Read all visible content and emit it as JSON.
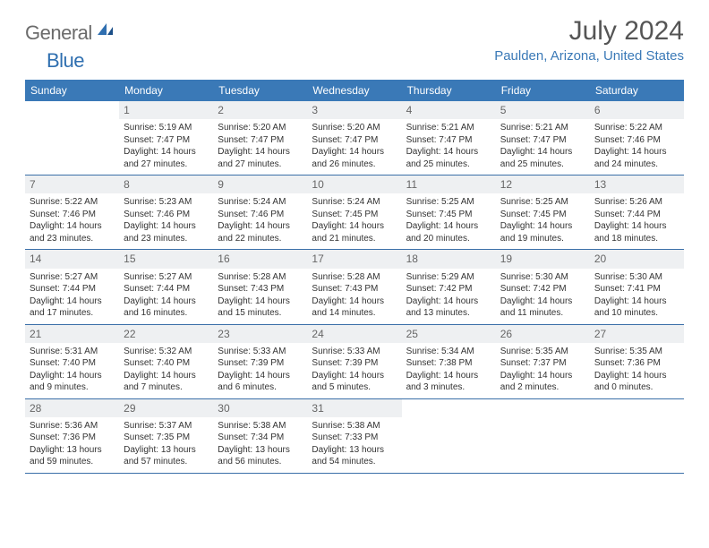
{
  "logo": {
    "general": "General",
    "blue": "Blue"
  },
  "title": "July 2024",
  "location": "Paulden, Arizona, United States",
  "colors": {
    "header_bg": "#3a79b7",
    "header_text": "#ffffff",
    "daynum_bg": "#eef0f2",
    "daynum_text": "#666666",
    "border": "#3a6fa8",
    "location_text": "#3a79b7"
  },
  "day_headers": [
    "Sunday",
    "Monday",
    "Tuesday",
    "Wednesday",
    "Thursday",
    "Friday",
    "Saturday"
  ],
  "weeks": [
    [
      null,
      {
        "n": "1",
        "sr": "Sunrise: 5:19 AM",
        "ss": "Sunset: 7:47 PM",
        "d1": "Daylight: 14 hours",
        "d2": "and 27 minutes."
      },
      {
        "n": "2",
        "sr": "Sunrise: 5:20 AM",
        "ss": "Sunset: 7:47 PM",
        "d1": "Daylight: 14 hours",
        "d2": "and 27 minutes."
      },
      {
        "n": "3",
        "sr": "Sunrise: 5:20 AM",
        "ss": "Sunset: 7:47 PM",
        "d1": "Daylight: 14 hours",
        "d2": "and 26 minutes."
      },
      {
        "n": "4",
        "sr": "Sunrise: 5:21 AM",
        "ss": "Sunset: 7:47 PM",
        "d1": "Daylight: 14 hours",
        "d2": "and 25 minutes."
      },
      {
        "n": "5",
        "sr": "Sunrise: 5:21 AM",
        "ss": "Sunset: 7:47 PM",
        "d1": "Daylight: 14 hours",
        "d2": "and 25 minutes."
      },
      {
        "n": "6",
        "sr": "Sunrise: 5:22 AM",
        "ss": "Sunset: 7:46 PM",
        "d1": "Daylight: 14 hours",
        "d2": "and 24 minutes."
      }
    ],
    [
      {
        "n": "7",
        "sr": "Sunrise: 5:22 AM",
        "ss": "Sunset: 7:46 PM",
        "d1": "Daylight: 14 hours",
        "d2": "and 23 minutes."
      },
      {
        "n": "8",
        "sr": "Sunrise: 5:23 AM",
        "ss": "Sunset: 7:46 PM",
        "d1": "Daylight: 14 hours",
        "d2": "and 23 minutes."
      },
      {
        "n": "9",
        "sr": "Sunrise: 5:24 AM",
        "ss": "Sunset: 7:46 PM",
        "d1": "Daylight: 14 hours",
        "d2": "and 22 minutes."
      },
      {
        "n": "10",
        "sr": "Sunrise: 5:24 AM",
        "ss": "Sunset: 7:45 PM",
        "d1": "Daylight: 14 hours",
        "d2": "and 21 minutes."
      },
      {
        "n": "11",
        "sr": "Sunrise: 5:25 AM",
        "ss": "Sunset: 7:45 PM",
        "d1": "Daylight: 14 hours",
        "d2": "and 20 minutes."
      },
      {
        "n": "12",
        "sr": "Sunrise: 5:25 AM",
        "ss": "Sunset: 7:45 PM",
        "d1": "Daylight: 14 hours",
        "d2": "and 19 minutes."
      },
      {
        "n": "13",
        "sr": "Sunrise: 5:26 AM",
        "ss": "Sunset: 7:44 PM",
        "d1": "Daylight: 14 hours",
        "d2": "and 18 minutes."
      }
    ],
    [
      {
        "n": "14",
        "sr": "Sunrise: 5:27 AM",
        "ss": "Sunset: 7:44 PM",
        "d1": "Daylight: 14 hours",
        "d2": "and 17 minutes."
      },
      {
        "n": "15",
        "sr": "Sunrise: 5:27 AM",
        "ss": "Sunset: 7:44 PM",
        "d1": "Daylight: 14 hours",
        "d2": "and 16 minutes."
      },
      {
        "n": "16",
        "sr": "Sunrise: 5:28 AM",
        "ss": "Sunset: 7:43 PM",
        "d1": "Daylight: 14 hours",
        "d2": "and 15 minutes."
      },
      {
        "n": "17",
        "sr": "Sunrise: 5:28 AM",
        "ss": "Sunset: 7:43 PM",
        "d1": "Daylight: 14 hours",
        "d2": "and 14 minutes."
      },
      {
        "n": "18",
        "sr": "Sunrise: 5:29 AM",
        "ss": "Sunset: 7:42 PM",
        "d1": "Daylight: 14 hours",
        "d2": "and 13 minutes."
      },
      {
        "n": "19",
        "sr": "Sunrise: 5:30 AM",
        "ss": "Sunset: 7:42 PM",
        "d1": "Daylight: 14 hours",
        "d2": "and 11 minutes."
      },
      {
        "n": "20",
        "sr": "Sunrise: 5:30 AM",
        "ss": "Sunset: 7:41 PM",
        "d1": "Daylight: 14 hours",
        "d2": "and 10 minutes."
      }
    ],
    [
      {
        "n": "21",
        "sr": "Sunrise: 5:31 AM",
        "ss": "Sunset: 7:40 PM",
        "d1": "Daylight: 14 hours",
        "d2": "and 9 minutes."
      },
      {
        "n": "22",
        "sr": "Sunrise: 5:32 AM",
        "ss": "Sunset: 7:40 PM",
        "d1": "Daylight: 14 hours",
        "d2": "and 7 minutes."
      },
      {
        "n": "23",
        "sr": "Sunrise: 5:33 AM",
        "ss": "Sunset: 7:39 PM",
        "d1": "Daylight: 14 hours",
        "d2": "and 6 minutes."
      },
      {
        "n": "24",
        "sr": "Sunrise: 5:33 AM",
        "ss": "Sunset: 7:39 PM",
        "d1": "Daylight: 14 hours",
        "d2": "and 5 minutes."
      },
      {
        "n": "25",
        "sr": "Sunrise: 5:34 AM",
        "ss": "Sunset: 7:38 PM",
        "d1": "Daylight: 14 hours",
        "d2": "and 3 minutes."
      },
      {
        "n": "26",
        "sr": "Sunrise: 5:35 AM",
        "ss": "Sunset: 7:37 PM",
        "d1": "Daylight: 14 hours",
        "d2": "and 2 minutes."
      },
      {
        "n": "27",
        "sr": "Sunrise: 5:35 AM",
        "ss": "Sunset: 7:36 PM",
        "d1": "Daylight: 14 hours",
        "d2": "and 0 minutes."
      }
    ],
    [
      {
        "n": "28",
        "sr": "Sunrise: 5:36 AM",
        "ss": "Sunset: 7:36 PM",
        "d1": "Daylight: 13 hours",
        "d2": "and 59 minutes."
      },
      {
        "n": "29",
        "sr": "Sunrise: 5:37 AM",
        "ss": "Sunset: 7:35 PM",
        "d1": "Daylight: 13 hours",
        "d2": "and 57 minutes."
      },
      {
        "n": "30",
        "sr": "Sunrise: 5:38 AM",
        "ss": "Sunset: 7:34 PM",
        "d1": "Daylight: 13 hours",
        "d2": "and 56 minutes."
      },
      {
        "n": "31",
        "sr": "Sunrise: 5:38 AM",
        "ss": "Sunset: 7:33 PM",
        "d1": "Daylight: 13 hours",
        "d2": "and 54 minutes."
      },
      null,
      null,
      null
    ]
  ]
}
